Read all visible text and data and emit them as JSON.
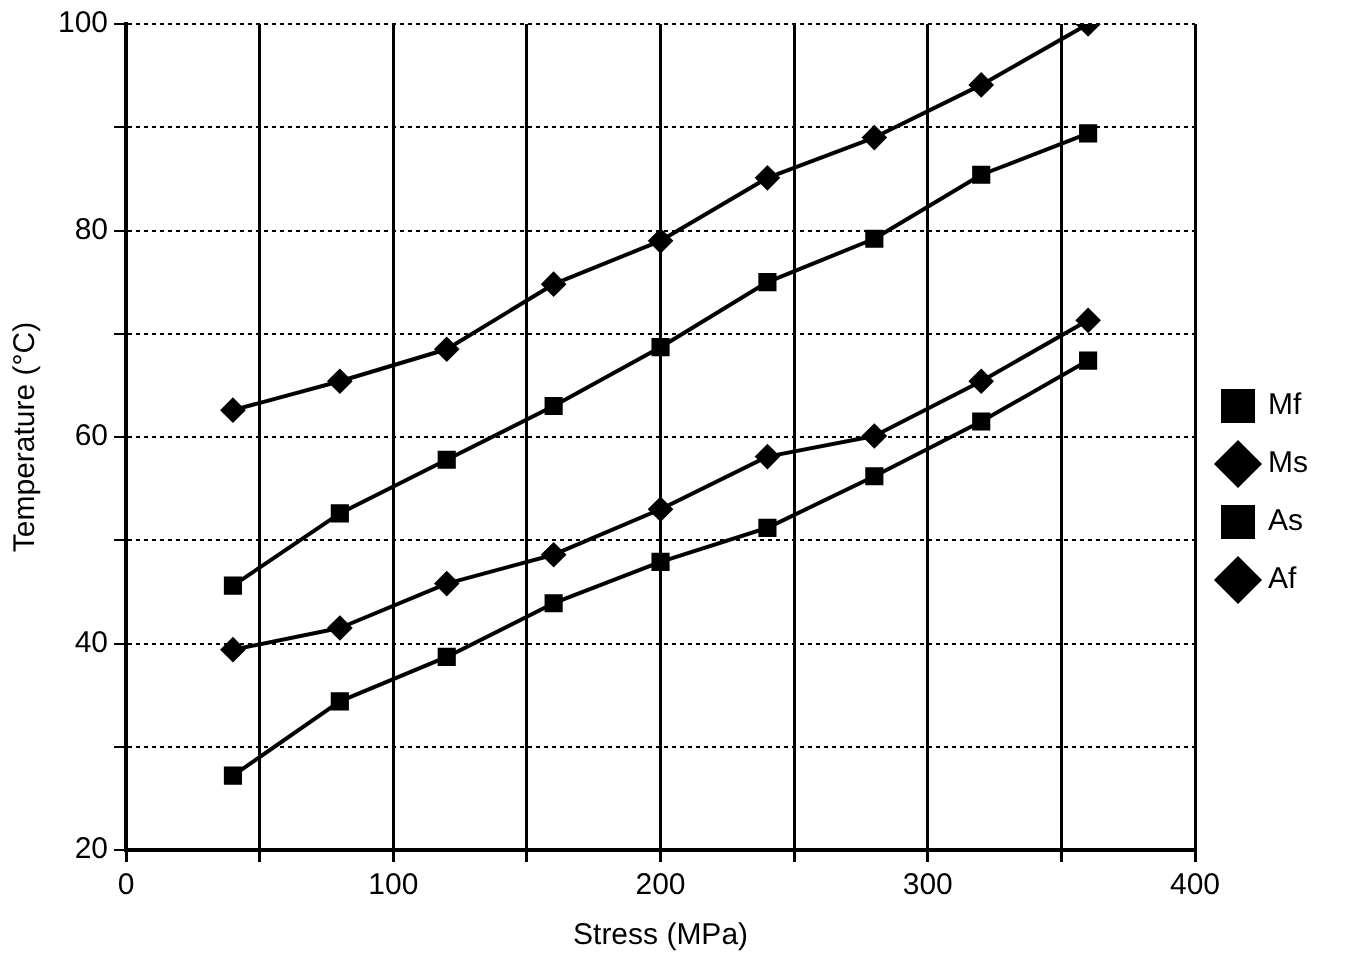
{
  "chart_data": {
    "type": "line",
    "xlabel": "Stress (MPa)",
    "ylabel": "Temperature (°C)",
    "x": [
      40,
      80,
      120,
      160,
      200,
      240,
      280,
      320,
      360
    ],
    "series": [
      {
        "name": "Mf",
        "color": "#000000",
        "marker": "square",
        "values": [
          27.2,
          34.4,
          38.7,
          43.9,
          47.9,
          51.2,
          56.2,
          61.5,
          67.4
        ]
      },
      {
        "name": "Ms",
        "color": "#000000",
        "marker": "diamond",
        "values": [
          39.4,
          41.5,
          45.8,
          48.6,
          53,
          58.1,
          60.1,
          65.4,
          71.3
        ]
      },
      {
        "name": "As",
        "color": "#000000",
        "marker": "square",
        "values": [
          45.6,
          52.6,
          57.8,
          63,
          68.7,
          75,
          79.2,
          85.4,
          89.4
        ]
      },
      {
        "name": "Af",
        "color": "#000000",
        "marker": "diamond",
        "values": [
          62.6,
          65.4,
          68.5,
          74.8,
          79,
          85.1,
          89,
          94.1,
          100
        ]
      }
    ],
    "xlim": [
      0,
      400
    ],
    "xticks": [
      0,
      {
        "value": 50,
        "label": null
      },
      100,
      {
        "value": 150,
        "label": null
      },
      200,
      {
        "value": 250,
        "label": null
      },
      300,
      {
        "value": 350,
        "label": null
      },
      400
    ],
    "ylim": [
      20,
      100
    ],
    "yticks": [
      20,
      {
        "value": 30,
        "label": null
      },
      40,
      {
        "value": 50,
        "label": null
      },
      60,
      {
        "value": 70,
        "label": null
      },
      80,
      {
        "value": 90,
        "label": null
      },
      100
    ],
    "grid": true,
    "legend": "right",
    "line_style": "solid"
  }
}
